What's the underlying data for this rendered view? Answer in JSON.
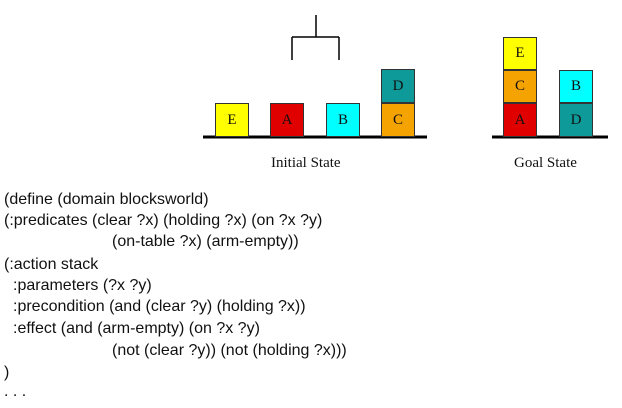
{
  "diagram": {
    "initial_state": {
      "caption": "Initial State",
      "blocks": [
        {
          "label": "E",
          "color": "#FFFF00"
        },
        {
          "label": "A",
          "color": "#E00000"
        },
        {
          "label": "B",
          "color": "#00FFFF"
        },
        {
          "label": "C",
          "color": "#F5A300"
        },
        {
          "label": "D",
          "color": "#0F9A9A"
        }
      ]
    },
    "goal_state": {
      "caption": "Goal State",
      "blocks": [
        {
          "label": "E",
          "color": "#FFFF00"
        },
        {
          "label": "C",
          "color": "#F5A300"
        },
        {
          "label": "A",
          "color": "#E00000"
        },
        {
          "label": "B",
          "color": "#00FFFF"
        },
        {
          "label": "D",
          "color": "#0F9A9A"
        }
      ]
    }
  },
  "code": {
    "lines": [
      "(define (domain blocksworld)",
      "(:predicates (clear ?x) (holding ?x) (on ?x ?y)",
      "(on-table ?x) (arm-empty))",
      "(:action stack",
      ":parameters (?x ?y)",
      ":precondition (and (clear ?y) (holding ?x))",
      ":effect (and (arm-empty) (on ?x ?y)",
      "(not (clear ?y)) (not (holding ?x)))",
      ")",
      ". . ."
    ]
  }
}
